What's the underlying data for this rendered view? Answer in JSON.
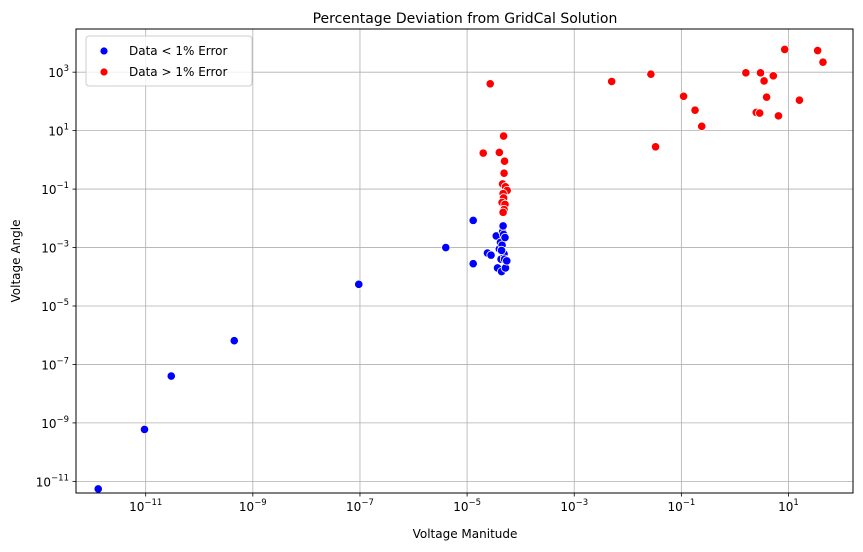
{
  "chart_data": {
    "type": "scatter",
    "title": "Percentage Deviation from GridCal Solution",
    "xlabel": "Voltage Manitude",
    "ylabel": "Voltage Angle",
    "xscale": "log",
    "yscale": "log",
    "xlim": [
      5e-13,
      160
    ],
    "ylim": [
      4e-12,
      30000
    ],
    "grid": true,
    "legend_position": "top-left",
    "x_ticks": [
      {
        "value": 1e-11,
        "base": "10",
        "exp": "−11"
      },
      {
        "value": 1e-09,
        "base": "10",
        "exp": "−9"
      },
      {
        "value": 1e-07,
        "base": "10",
        "exp": "−7"
      },
      {
        "value": 1e-05,
        "base": "10",
        "exp": "−5"
      },
      {
        "value": 0.001,
        "base": "10",
        "exp": "−3"
      },
      {
        "value": 0.1,
        "base": "10",
        "exp": "−1"
      },
      {
        "value": 10,
        "base": "10",
        "exp": "1"
      }
    ],
    "y_ticks": [
      {
        "value": 1e-11,
        "base": "10",
        "exp": "−11"
      },
      {
        "value": 1e-09,
        "base": "10",
        "exp": "−9"
      },
      {
        "value": 1e-07,
        "base": "10",
        "exp": "−7"
      },
      {
        "value": 1e-05,
        "base": "10",
        "exp": "−5"
      },
      {
        "value": 0.001,
        "base": "10",
        "exp": "−3"
      },
      {
        "value": 0.1,
        "base": "10",
        "exp": "−1"
      },
      {
        "value": 10,
        "base": "10",
        "exp": "1"
      },
      {
        "value": 1000,
        "base": "10",
        "exp": "3"
      }
    ],
    "series": [
      {
        "name": "Data < 1% Error",
        "color": "#0000ff",
        "points": [
          [
            1.3e-12,
            5.5e-12
          ],
          [
            9.5e-12,
            6e-10
          ],
          [
            3e-11,
            4e-08
          ],
          [
            4.5e-10,
            6.5e-07
          ],
          [
            9.5e-08,
            5.5e-05
          ],
          [
            4e-06,
            0.001
          ],
          [
            1.3e-05,
            0.0085
          ],
          [
            1.3e-05,
            0.00028
          ],
          [
            2.4e-05,
            0.00065
          ],
          [
            2.8e-05,
            0.00055
          ],
          [
            3.5e-05,
            0.0025
          ],
          [
            3.7e-05,
            0.0002
          ],
          [
            4e-05,
            0.0009
          ],
          [
            4.2e-05,
            0.0015
          ],
          [
            4.3e-05,
            0.0004
          ],
          [
            4.4e-05,
            0.00015
          ],
          [
            4.5e-05,
            0.0012
          ],
          [
            4.6e-05,
            0.0035
          ],
          [
            4.7e-05,
            0.0055
          ],
          [
            4.8e-05,
            0.0028
          ],
          [
            4.9e-05,
            0.0006
          ],
          [
            5e-05,
            0.0004
          ],
          [
            5.2e-05,
            0.0002
          ],
          [
            5.5e-05,
            0.00035
          ],
          [
            4.4e-05,
            0.0008
          ],
          [
            5.1e-05,
            0.0022
          ]
        ]
      },
      {
        "name": "Data > 1% Error",
        "color": "#ff0000",
        "points": [
          [
            2.7e-05,
            400
          ],
          [
            2e-05,
            1.7
          ],
          [
            4e-05,
            1.8
          ],
          [
            4.8e-05,
            6.5
          ],
          [
            5e-05,
            0.9
          ],
          [
            4.9e-05,
            0.35
          ],
          [
            4.6e-05,
            0.15
          ],
          [
            5.2e-05,
            0.12
          ],
          [
            5.6e-05,
            0.09
          ],
          [
            4.7e-05,
            0.07
          ],
          [
            4.8e-05,
            0.05
          ],
          [
            4.5e-05,
            0.035
          ],
          [
            5.1e-05,
            0.03
          ],
          [
            4.9e-05,
            0.02
          ],
          [
            4.7e-05,
            0.016
          ],
          [
            0.005,
            480
          ],
          [
            0.027,
            850
          ],
          [
            0.033,
            2.8
          ],
          [
            0.11,
            150
          ],
          [
            0.18,
            50
          ],
          [
            0.24,
            14
          ],
          [
            1.6,
            950
          ],
          [
            2.5,
            42
          ],
          [
            2.9,
            40
          ],
          [
            3,
            950
          ],
          [
            3.5,
            500
          ],
          [
            3.9,
            140
          ],
          [
            5.2,
            750
          ],
          [
            6.5,
            32
          ],
          [
            8.5,
            6000
          ],
          [
            16,
            110
          ],
          [
            35,
            5500
          ],
          [
            44,
            2200
          ]
        ]
      }
    ]
  }
}
